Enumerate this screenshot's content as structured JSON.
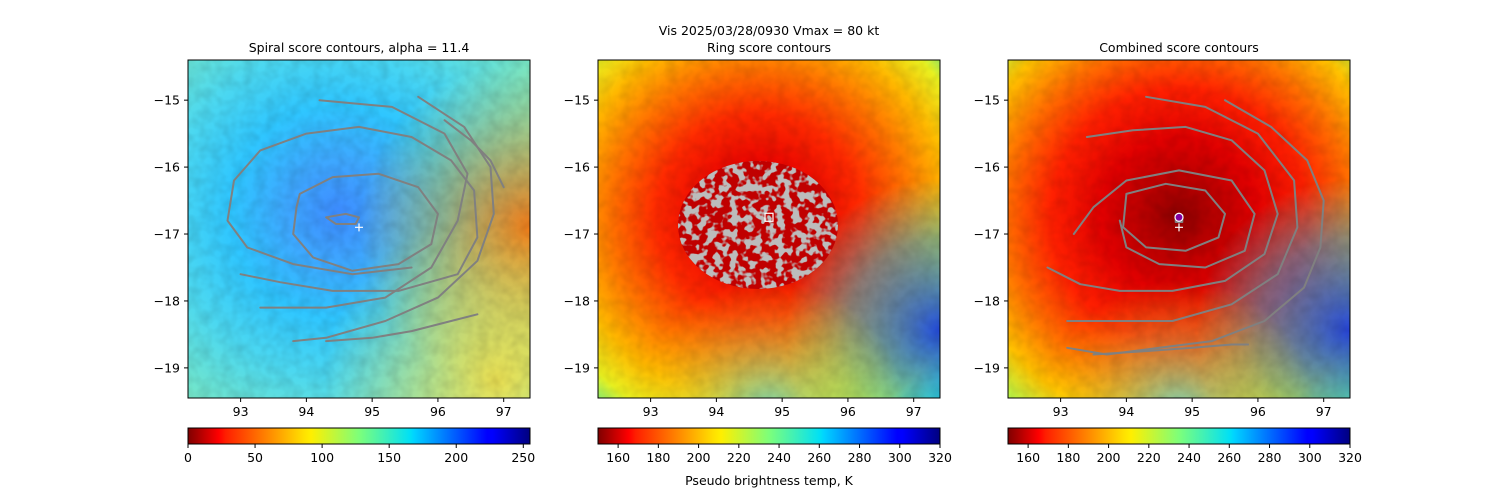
{
  "suptitle": "Vis  2025/03/28/0930    Vmax = 80 kt",
  "colormap": "jet",
  "colorbar_label": "Pseudo brightness temp, K",
  "contour_color": "#808080",
  "marker_color": "#ffffff",
  "chart_data": [
    {
      "type": "heatmap",
      "title": "Spiral score contours, alpha = 11.4",
      "xlabel": "",
      "ylabel": "",
      "xlim": [
        92.2,
        97.4
      ],
      "ylim": [
        -19.45,
        -14.4
      ],
      "x_ticks": [
        93,
        94,
        95,
        96,
        97
      ],
      "x_tick_labels": [
        "93",
        "94",
        "95",
        "96",
        "97"
      ],
      "y_ticks": [
        -15,
        -16,
        -17,
        -18,
        -19
      ],
      "y_tick_labels": [
        "−15",
        "−16",
        "−17",
        "−18",
        "−19"
      ],
      "colorbar": {
        "range": [
          0,
          255
        ],
        "ticks": [
          0,
          50,
          100,
          150,
          200,
          250
        ],
        "tick_labels": [
          "0",
          "50",
          "100",
          "150",
          "200",
          "250"
        ]
      },
      "background_value": 140,
      "eye_center": [
        94.8,
        -16.9
      ],
      "markers": [
        {
          "type": "plus",
          "x": 94.8,
          "y": -16.9
        }
      ],
      "contours": [
        {
          "points": [
            [
              93.0,
              -17.6
            ],
            [
              93.6,
              -17.72
            ],
            [
              94.4,
              -17.85
            ],
            [
              95.4,
              -17.85
            ],
            [
              96.3,
              -17.6
            ],
            [
              96.6,
              -17.05
            ],
            [
              96.55,
              -16.35
            ],
            [
              96.2,
              -15.9
            ],
            [
              95.6,
              -15.55
            ],
            [
              94.8,
              -15.4
            ],
            [
              94.0,
              -15.5
            ],
            [
              93.3,
              -15.75
            ],
            [
              92.9,
              -16.2
            ],
            [
              92.8,
              -16.8
            ],
            [
              93.1,
              -17.2
            ],
            [
              93.8,
              -17.45
            ],
            [
              94.7,
              -17.6
            ],
            [
              95.6,
              -17.5
            ]
          ],
          "closed": false
        },
        {
          "points": [
            [
              93.9,
              -16.4
            ],
            [
              94.4,
              -16.15
            ],
            [
              95.1,
              -16.1
            ],
            [
              95.7,
              -16.3
            ],
            [
              96.0,
              -16.7
            ],
            [
              95.9,
              -17.15
            ],
            [
              95.4,
              -17.45
            ],
            [
              94.7,
              -17.55
            ],
            [
              94.1,
              -17.35
            ],
            [
              93.8,
              -17.0
            ],
            [
              93.85,
              -16.6
            ]
          ],
          "closed": true
        },
        {
          "points": [
            [
              94.3,
              -16.75
            ],
            [
              94.6,
              -16.7
            ],
            [
              94.8,
              -16.75
            ],
            [
              94.75,
              -16.85
            ],
            [
              94.45,
              -16.85
            ]
          ],
          "closed": true
        },
        {
          "points": [
            [
              94.2,
              -15.0
            ],
            [
              95.3,
              -15.1
            ],
            [
              96.1,
              -15.5
            ],
            [
              96.45,
              -16.1
            ],
            [
              96.3,
              -16.8
            ],
            [
              95.9,
              -17.5
            ],
            [
              95.2,
              -17.95
            ],
            [
              94.3,
              -18.1
            ],
            [
              93.3,
              -18.1
            ]
          ],
          "closed": false
        },
        {
          "points": [
            [
              95.7,
              -14.95
            ],
            [
              96.4,
              -15.4
            ],
            [
              96.8,
              -16.0
            ],
            [
              96.85,
              -16.7
            ],
            [
              96.6,
              -17.4
            ],
            [
              96.0,
              -17.95
            ],
            [
              95.2,
              -18.3
            ],
            [
              94.3,
              -18.55
            ],
            [
              93.8,
              -18.6
            ]
          ],
          "closed": false
        },
        {
          "points": [
            [
              94.3,
              -18.6
            ],
            [
              95.0,
              -18.55
            ],
            [
              95.6,
              -18.45
            ],
            [
              96.2,
              -18.3
            ],
            [
              96.6,
              -18.2
            ]
          ],
          "closed": false
        },
        {
          "points": [
            [
              96.1,
              -15.3
            ],
            [
              96.5,
              -15.6
            ],
            [
              96.8,
              -15.9
            ],
            [
              97.0,
              -16.3
            ]
          ],
          "closed": false
        }
      ]
    },
    {
      "type": "heatmap",
      "title": "Ring score contours",
      "xlabel": "Pseudo brightness temp, K",
      "ylabel": "",
      "xlim": [
        92.2,
        97.4
      ],
      "ylim": [
        -19.45,
        -14.4
      ],
      "x_ticks": [
        93,
        94,
        95,
        96,
        97
      ],
      "x_tick_labels": [
        "93",
        "94",
        "95",
        "96",
        "97"
      ],
      "y_ticks": [
        -15,
        -16,
        -17,
        -18,
        -19
      ],
      "y_tick_labels": [
        "−15",
        "−16",
        "−17",
        "−18",
        "−19"
      ],
      "colorbar": {
        "range": [
          150,
          320
        ],
        "ticks": [
          160,
          180,
          200,
          220,
          240,
          260,
          280,
          300,
          320
        ],
        "tick_labels": [
          "160",
          "180",
          "200",
          "220",
          "240",
          "260",
          "280",
          "300",
          "320"
        ]
      },
      "background_value": 195,
      "eye_center": [
        94.8,
        -16.75
      ],
      "markers": [
        {
          "type": "square",
          "x": 94.8,
          "y": -16.75
        }
      ],
      "ring_region": {
        "center": [
          94.75,
          -16.7
        ],
        "rx_deg": 1.25,
        "ry_deg": 0.9
      }
    },
    {
      "type": "heatmap",
      "title": "Combined score contours",
      "xlabel": "",
      "ylabel": "",
      "xlim": [
        92.2,
        97.4
      ],
      "ylim": [
        -19.45,
        -14.4
      ],
      "x_ticks": [
        93,
        94,
        95,
        96,
        97
      ],
      "x_tick_labels": [
        "93",
        "94",
        "95",
        "96",
        "97"
      ],
      "y_ticks": [
        -15,
        -16,
        -17,
        -18,
        -19
      ],
      "y_tick_labels": [
        "−15",
        "−16",
        "−17",
        "−18",
        "−19"
      ],
      "colorbar": {
        "range": [
          150,
          320
        ],
        "ticks": [
          160,
          180,
          200,
          220,
          240,
          260,
          280,
          300,
          320
        ],
        "tick_labels": [
          "160",
          "180",
          "200",
          "220",
          "240",
          "260",
          "280",
          "300",
          "320"
        ]
      },
      "background_value": 180,
      "eye_center": [
        94.8,
        -16.9
      ],
      "markers": [
        {
          "type": "plus",
          "x": 94.8,
          "y": -16.9
        },
        {
          "type": "circle",
          "x": 94.8,
          "y": -16.75
        }
      ],
      "contours": [
        {
          "points": [
            [
              93.2,
              -17.0
            ],
            [
              93.5,
              -16.6
            ],
            [
              94.0,
              -16.2
            ],
            [
              94.8,
              -16.05
            ],
            [
              95.6,
              -16.2
            ],
            [
              95.95,
              -16.7
            ],
            [
              95.8,
              -17.25
            ],
            [
              95.2,
              -17.5
            ],
            [
              94.5,
              -17.45
            ],
            [
              94.0,
              -17.2
            ],
            [
              93.9,
              -16.8
            ]
          ],
          "closed": false
        },
        {
          "points": [
            [
              94.0,
              -16.4
            ],
            [
              94.6,
              -16.25
            ],
            [
              95.2,
              -16.35
            ],
            [
              95.5,
              -16.7
            ],
            [
              95.4,
              -17.05
            ],
            [
              94.9,
              -17.25
            ],
            [
              94.3,
              -17.2
            ],
            [
              93.95,
              -16.9
            ]
          ],
          "closed": true
        },
        {
          "points": [
            [
              94.75,
              -16.72
            ],
            [
              94.85,
              -16.72
            ],
            [
              94.85,
              -16.82
            ],
            [
              94.75,
              -16.82
            ]
          ],
          "closed": true
        },
        {
          "points": [
            [
              93.4,
              -15.55
            ],
            [
              94.1,
              -15.45
            ],
            [
              94.9,
              -15.4
            ],
            [
              95.6,
              -15.6
            ],
            [
              96.1,
              -16.05
            ],
            [
              96.3,
              -16.7
            ],
            [
              96.1,
              -17.3
            ],
            [
              95.5,
              -17.7
            ],
            [
              94.7,
              -17.85
            ],
            [
              93.9,
              -17.85
            ],
            [
              93.3,
              -17.75
            ],
            [
              92.8,
              -17.5
            ]
          ],
          "closed": false
        },
        {
          "points": [
            [
              94.3,
              -14.95
            ],
            [
              95.2,
              -15.1
            ],
            [
              96.0,
              -15.5
            ],
            [
              96.55,
              -16.2
            ],
            [
              96.6,
              -16.9
            ],
            [
              96.3,
              -17.6
            ],
            [
              95.6,
              -18.05
            ],
            [
              94.7,
              -18.3
            ],
            [
              93.8,
              -18.3
            ],
            [
              93.1,
              -18.3
            ]
          ],
          "closed": false
        },
        {
          "points": [
            [
              95.5,
              -15.0
            ],
            [
              96.2,
              -15.4
            ],
            [
              96.75,
              -15.9
            ],
            [
              97.0,
              -16.5
            ],
            [
              96.95,
              -17.2
            ],
            [
              96.7,
              -17.8
            ],
            [
              96.1,
              -18.3
            ],
            [
              95.3,
              -18.6
            ],
            [
              94.5,
              -18.7
            ],
            [
              93.7,
              -18.8
            ],
            [
              93.1,
              -18.7
            ]
          ],
          "closed": false
        },
        {
          "points": [
            [
              93.5,
              -18.8
            ],
            [
              94.3,
              -18.75
            ],
            [
              95.0,
              -18.7
            ],
            [
              95.6,
              -18.65
            ],
            [
              95.85,
              -18.65
            ]
          ],
          "closed": false
        }
      ]
    }
  ]
}
